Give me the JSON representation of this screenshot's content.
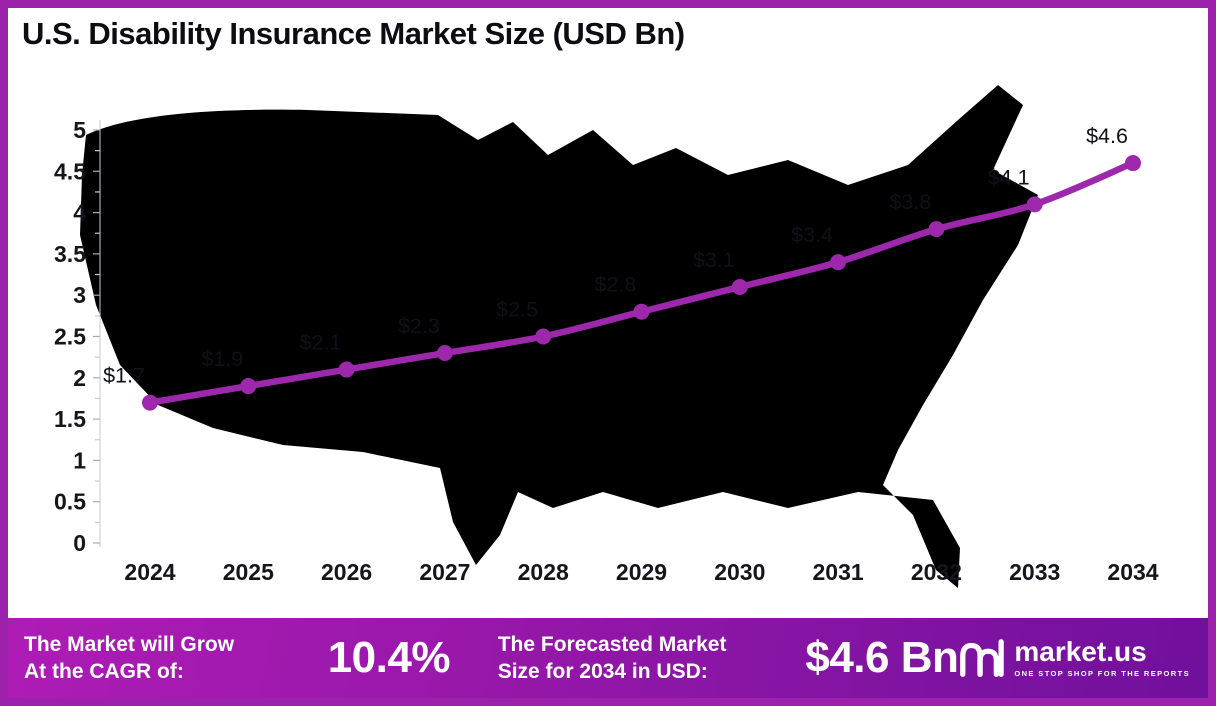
{
  "title": "U.S. Disability Insurance Market Size (USD Bn)",
  "chart_data": {
    "type": "line",
    "title": "U.S. Disability Insurance Market Size (USD Bn)",
    "categories": [
      "2024",
      "2025",
      "2026",
      "2027",
      "2028",
      "2029",
      "2030",
      "2031",
      "2032",
      "2033",
      "2034"
    ],
    "values": [
      1.7,
      1.9,
      2.1,
      2.3,
      2.5,
      2.8,
      3.1,
      3.4,
      3.8,
      4.1,
      4.6
    ],
    "point_labels": [
      "$1.7",
      "$1.9",
      "$2.1",
      "$2.3",
      "$2.5",
      "$2.8",
      "$3.1",
      "$3.4",
      "$3.8",
      "$4.1",
      "$4.6"
    ],
    "xlabel": "",
    "ylabel": "",
    "ylim": [
      0,
      5
    ],
    "ytick_step": 0.5,
    "grid": false,
    "legend": "none",
    "line_color": "#9E28AC",
    "point_color": "#9E28AC",
    "label_color": "#101018",
    "axis_label_color": "#15151D",
    "map_fill": "#E9EDF7"
  },
  "footer": {
    "cagr_label_line1": "The Market will Grow",
    "cagr_label_line2": "At the CAGR of:",
    "cagr_value": "10.4%",
    "forecast_label_line1": "The Forecasted Market",
    "forecast_label_line2": "Size for 2034 in USD:",
    "forecast_value": "$4.6 Bn",
    "brand": "market.us",
    "brand_tagline": "ONE STOP SHOP FOR THE REPORTS"
  }
}
